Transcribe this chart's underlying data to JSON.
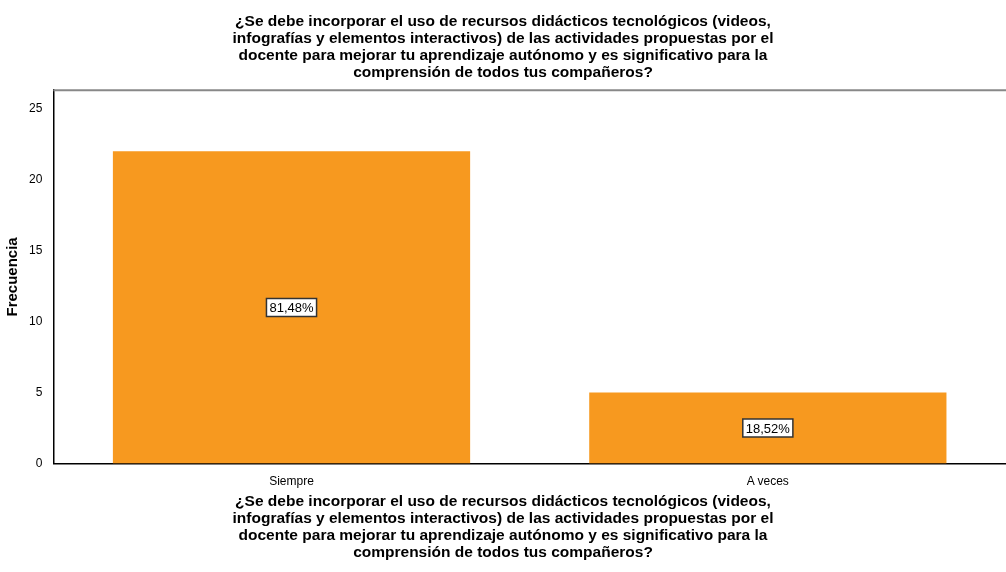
{
  "chart_data": {
    "type": "bar",
    "title": "¿Se debe incorporar el uso de recursos didácticos tecnológicos (videos, infografías y elementos interactivos) de las actividades propuestas por el docente para mejorar tu aprendizaje autónomo y es significativo para la comprensión de todos tus compañeros?",
    "xlabel": "¿Se debe incorporar el uso de recursos didácticos tecnológicos (videos, infografías y elementos interactivos) de las actividades propuestas por el docente para mejorar tu aprendizaje autónomo y es significativo para la comprensión de todos tus compañeros?",
    "ylabel": "Frecuencia",
    "categories": [
      "Siempre",
      "A veces"
    ],
    "values": [
      22,
      5
    ],
    "annotations": [
      "81,48%",
      "18,52%"
    ],
    "color": "#f7991f",
    "ylim": [
      0,
      26.3
    ],
    "yticks": [
      0,
      5,
      10,
      15,
      20,
      25
    ],
    "grid": false,
    "legend": false
  }
}
